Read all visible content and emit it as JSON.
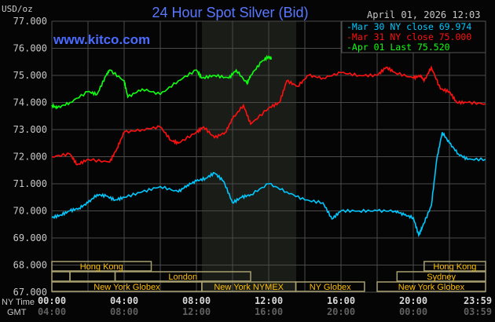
{
  "header": {
    "title": "24 Hour Spot Silver (Bid)",
    "site": "www.kitco.com",
    "timestamp": "April 01, 2026 12:03",
    "unit": "USD/oz"
  },
  "legend": [
    {
      "label": "Mar 30 NY close 69.974",
      "color": "#00c8ff"
    },
    {
      "label": "Mar 31 NY close 75.000",
      "color": "#ff1010"
    },
    {
      "label": "Apr 01 Last 75.520",
      "color": "#10ff10"
    }
  ],
  "axes": {
    "y_ticks": [
      "77.000",
      "76.000",
      "75.000",
      "74.000",
      "73.000",
      "72.000",
      "71.000",
      "70.000",
      "69.000",
      "68.000",
      "67.000"
    ],
    "ny_time_label": "NY Time",
    "gmt_label": "GMT",
    "ny_ticks": [
      "00:00",
      "04:00",
      "08:00",
      "12:00",
      "16:00",
      "20:00",
      "23:59"
    ],
    "gmt_ticks": [
      "04:00",
      "08:00",
      "12:00",
      "16:00",
      "20:00",
      "00:00",
      "03:59"
    ]
  },
  "sessions": {
    "hong_kong": "Hong Kong",
    "london": "London",
    "new_york_globex": "New York Globex",
    "new_york_nymex": "New York NYMEX",
    "ny_globex": "NY Globex",
    "sydney": "Sydney",
    "hong_kong_2": "Hong Kong",
    "new_york_globex_2": "New York Globex"
  },
  "chart_data": {
    "type": "line",
    "title": "24 Hour Spot Silver (Bid)",
    "ylabel": "USD/oz",
    "xlabel": "NY Time",
    "xlim": [
      0,
      24
    ],
    "ylim": [
      67,
      77
    ],
    "grid": true,
    "legend_position": "top-right",
    "series": [
      {
        "name": "Mar 30 NY close 69.974",
        "color": "#00c8ff",
        "x": [
          0,
          0.5,
          1,
          1.5,
          2,
          2.5,
          3,
          3.5,
          4,
          5,
          6,
          7,
          7.5,
          8,
          8.5,
          9,
          9.5,
          10,
          10.5,
          11,
          12,
          13,
          14,
          15,
          15.5,
          16,
          17,
          18,
          19,
          19.5,
          20,
          20.3,
          20.5,
          21,
          21.3,
          21.6,
          22,
          22.5,
          23,
          23.99
        ],
        "y": [
          69.75,
          69.85,
          70.0,
          70.1,
          70.3,
          70.6,
          70.55,
          70.4,
          70.5,
          70.7,
          70.9,
          70.7,
          70.95,
          71.1,
          71.2,
          71.4,
          71.1,
          70.3,
          70.5,
          70.6,
          71.0,
          70.7,
          70.4,
          70.3,
          69.7,
          70.0,
          70.0,
          70.0,
          70.0,
          69.85,
          69.75,
          69.1,
          69.4,
          70.2,
          71.9,
          72.9,
          72.5,
          72.1,
          71.9,
          71.9
        ]
      },
      {
        "name": "Mar 31 NY close 75.000",
        "color": "#ff1010",
        "x": [
          0,
          1,
          1.4,
          2,
          3.2,
          3.6,
          4,
          5,
          6,
          6.6,
          7,
          8,
          8.4,
          9,
          9.6,
          10,
          10.6,
          11,
          12,
          12.6,
          13,
          13.6,
          14.2,
          15,
          16,
          17,
          18,
          18.5,
          19,
          20,
          20.4,
          20.6,
          21,
          21.5,
          22,
          22.4,
          23,
          23.99
        ],
        "y": [
          72.0,
          72.1,
          71.7,
          71.9,
          71.8,
          72.3,
          72.9,
          73.0,
          73.1,
          72.6,
          72.5,
          72.9,
          73.1,
          72.7,
          72.9,
          73.4,
          73.9,
          73.2,
          73.8,
          74.0,
          74.8,
          74.6,
          75.0,
          74.9,
          75.1,
          75.0,
          75.0,
          75.3,
          75.1,
          74.9,
          75.0,
          74.8,
          75.3,
          74.5,
          74.4,
          74.0,
          74.0,
          73.95
        ]
      },
      {
        "name": "Apr 01 Last 75.520",
        "color": "#10ff10",
        "x": [
          0,
          0.3,
          1,
          2,
          2.5,
          3,
          3.2,
          4,
          4.2,
          5,
          6,
          7,
          8,
          8.3,
          9,
          9.8,
          10.2,
          10.8,
          11,
          11.6,
          12,
          12.15
        ],
        "y": [
          73.9,
          73.8,
          74.0,
          74.4,
          74.3,
          75.0,
          75.2,
          74.8,
          74.2,
          74.5,
          74.3,
          74.8,
          75.2,
          74.9,
          75.0,
          74.9,
          75.2,
          74.7,
          75.0,
          75.5,
          75.7,
          75.6
        ]
      }
    ]
  }
}
